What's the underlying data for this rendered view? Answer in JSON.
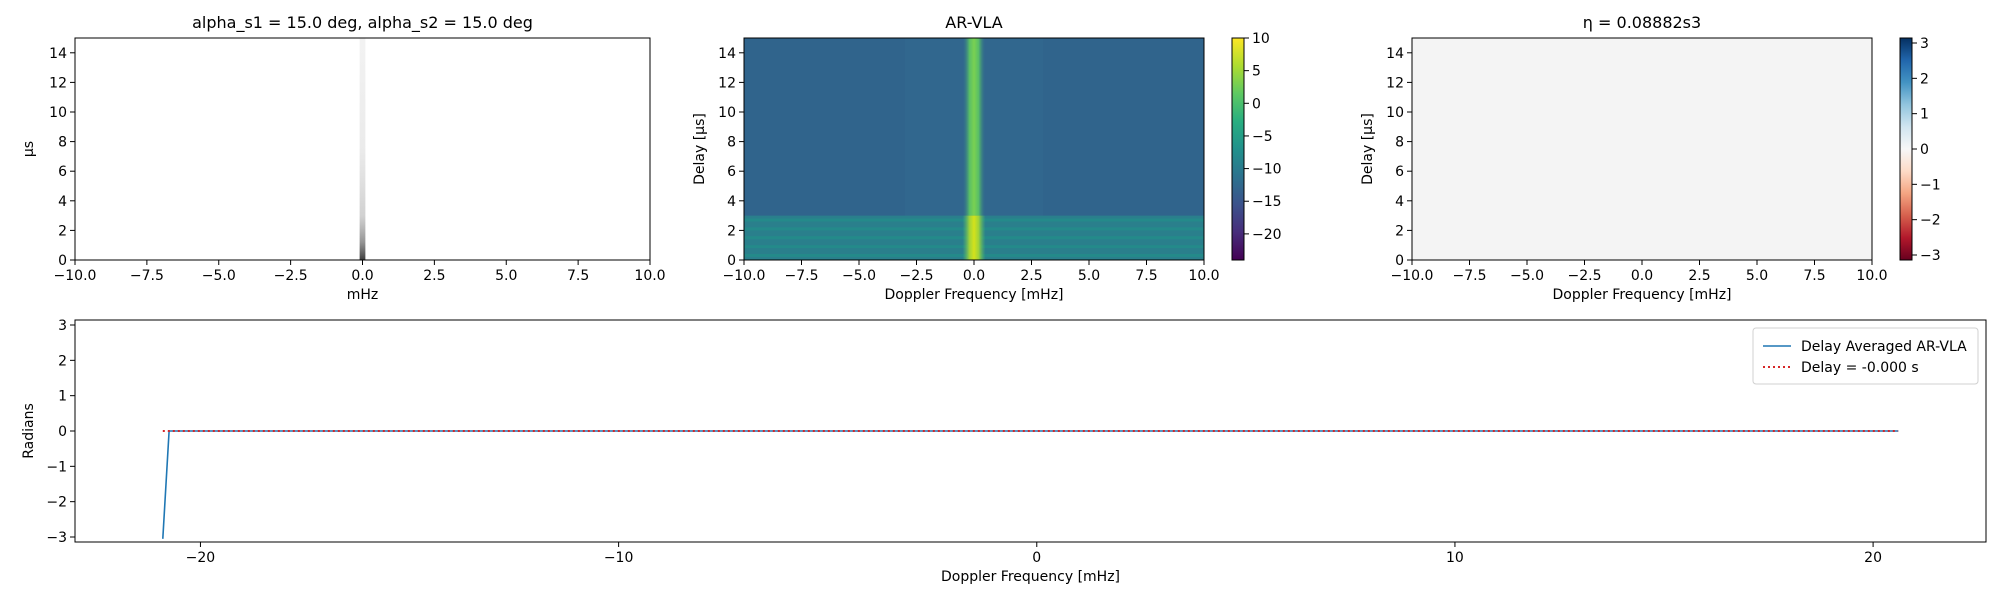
{
  "chart_data": [
    {
      "id": "p1",
      "type": "heatmap",
      "title": "alpha_s1 = 15.0 deg, alpha_s2 = 15.0 deg",
      "xlabel": "mHz",
      "ylabel": "µs",
      "xlim": [
        -10,
        10
      ],
      "ylim": [
        0,
        15
      ],
      "xticks": [
        -10,
        -7.5,
        -5,
        -2.5,
        0,
        2.5,
        5,
        7.5,
        10
      ],
      "xtick_labels": [
        "−10.0",
        "−7.5",
        "−5.0",
        "−2.5",
        "0.0",
        "2.5",
        "5.0",
        "7.5",
        "10.0"
      ],
      "yticks": [
        0,
        2,
        4,
        6,
        8,
        10,
        12,
        14
      ],
      "ytick_labels": [
        "0",
        "2",
        "4",
        "6",
        "8",
        "10",
        "12",
        "14"
      ],
      "colormap": "greys",
      "description_feature": {
        "x_center": 0.0,
        "x_halfwidth": 0.1,
        "max_intensity_at_y0": 0.9,
        "decay_scale": 1.5
      }
    },
    {
      "id": "p2",
      "type": "heatmap",
      "title": "AR-VLA",
      "xlabel": "Doppler Frequency [mHz]",
      "ylabel": "Delay [μs]",
      "xlim": [
        -10,
        10
      ],
      "ylim": [
        0,
        15
      ],
      "xticks": [
        -10,
        -7.5,
        -5,
        -2.5,
        0,
        2.5,
        5,
        7.5,
        10
      ],
      "xtick_labels": [
        "−10.0",
        "−7.5",
        "−5.0",
        "−2.5",
        "0.0",
        "2.5",
        "5.0",
        "7.5",
        "10.0"
      ],
      "yticks": [
        0,
        2,
        4,
        6,
        8,
        10,
        12,
        14
      ],
      "ytick_labels": [
        "0",
        "2",
        "4",
        "6",
        "8",
        "10",
        "12",
        "14"
      ],
      "colormap": "viridis",
      "clim": [
        -24,
        10
      ],
      "colorbar_ticks": [
        10,
        5,
        0,
        -5,
        -10,
        -15,
        -20
      ],
      "colorbar_labels": [
        "10",
        "5",
        "0",
        "−5",
        "−10",
        "−15",
        "−20"
      ],
      "background_level": -12.5,
      "low_delay_band": {
        "y_max": 3,
        "level": -9,
        "stripe_spacing": 0.6
      },
      "center_line": {
        "x_center": 0.0,
        "halfwidth": 0.5,
        "level_high_delay": 0,
        "level_low_delay": 6
      }
    },
    {
      "id": "p3",
      "type": "heatmap",
      "title": "η = 0.08882s3",
      "xlabel": "Doppler Frequency [mHz]",
      "ylabel": "Delay [μs]",
      "xlim": [
        -10,
        10
      ],
      "ylim": [
        0,
        15
      ],
      "xticks": [
        -10,
        -7.5,
        -5,
        -2.5,
        0,
        2.5,
        5,
        7.5,
        10
      ],
      "xtick_labels": [
        "−10.0",
        "−7.5",
        "−5.0",
        "−2.5",
        "0.0",
        "2.5",
        "5.0",
        "7.5",
        "10.0"
      ],
      "yticks": [
        0,
        2,
        4,
        6,
        8,
        10,
        12,
        14
      ],
      "ytick_labels": [
        "0",
        "2",
        "4",
        "6",
        "8",
        "10",
        "12",
        "14"
      ],
      "colormap": "RdBu",
      "clim": [
        -3.14159,
        3.14159
      ],
      "colorbar_ticks": [
        3,
        2,
        1,
        0,
        -1,
        -2,
        -3
      ],
      "colorbar_labels": [
        "3",
        "2",
        "1",
        "0",
        "−1",
        "−2",
        "−3"
      ],
      "fill_value": 0.0,
      "fill_color": "#f4f4f4"
    },
    {
      "id": "p4",
      "type": "line",
      "xlabel": "Doppler Frequency [mHz]",
      "ylabel": "Radians",
      "xlim": [
        -23.0,
        22.7
      ],
      "ylim": [
        -3.14159,
        3.14159
      ],
      "xticks": [
        -20,
        -10,
        0,
        10,
        20
      ],
      "xtick_labels": [
        "−20",
        "−10",
        "0",
        "10",
        "20"
      ],
      "yticks": [
        3,
        2,
        1,
        0,
        -1,
        -2,
        -3
      ],
      "ytick_labels": [
        "3",
        "2",
        "1",
        "0",
        "−1",
        "−2",
        "−3"
      ],
      "legend_position": "upper-right",
      "series": [
        {
          "name": "Delay Averaged  AR-VLA",
          "color": "#1f77b4",
          "style": "solid",
          "x": [
            -20.9,
            -20.75,
            20.6
          ],
          "y": [
            -3.05,
            0.0,
            0.0
          ]
        },
        {
          "name": "Delay = -0.000 s",
          "color": "#d62728",
          "style": "dotted",
          "x": [
            -20.9,
            20.6
          ],
          "y": [
            0.0,
            0.0
          ]
        }
      ]
    }
  ]
}
